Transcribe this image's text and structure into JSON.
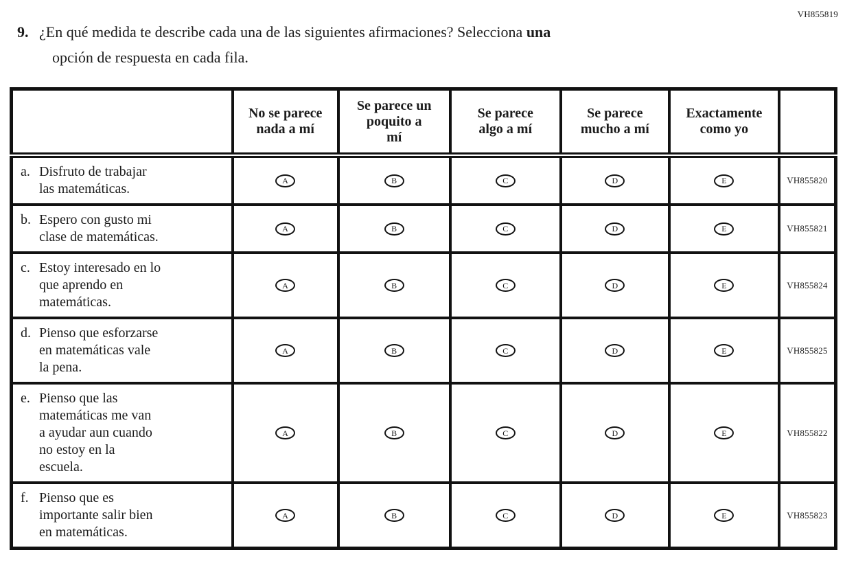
{
  "page": {
    "form_code": "VH855819"
  },
  "question": {
    "number": "9.",
    "line1_regular": "¿En qué medida te describe cada una de las siguientes afirmaciones? Selecciona",
    "line1_bold": "una",
    "line2": "opción de respuesta en cada fila."
  },
  "table": {
    "column_headers": [
      "No se parece\nnada a mí",
      "Se parece un\npoquito a\nmí",
      "Se parece\nalgo a mí",
      "Se parece\nmucho a mí",
      "Exactamente\ncomo yo"
    ],
    "options": [
      "A",
      "B",
      "C",
      "D",
      "E"
    ],
    "rows": [
      {
        "letter": "a.",
        "statement": "Disfruto de trabajar\nlas matemáticas.",
        "code": "VH855820"
      },
      {
        "letter": "b.",
        "statement": "Espero con gusto mi\nclase de matemáticas.",
        "code": "VH855821"
      },
      {
        "letter": "c.",
        "statement": "Estoy interesado en lo\nque aprendo en\nmatemáticas.",
        "code": "VH855824"
      },
      {
        "letter": "d.",
        "statement": "Pienso que esforzarse\nen matemáticas vale\nla pena.",
        "code": "VH855825"
      },
      {
        "letter": "e.",
        "statement": "Pienso que las\nmatemáticas me van\na ayudar aun cuando\nno estoy en la\nescuela.",
        "code": "VH855822"
      },
      {
        "letter": "f.",
        "statement": "Pienso que es\nimportante salir bien\nen matemáticas.",
        "code": "VH855823"
      }
    ]
  },
  "colors": {
    "ink": "#1c1c1c",
    "border": "#111111",
    "background": "#ffffff"
  }
}
